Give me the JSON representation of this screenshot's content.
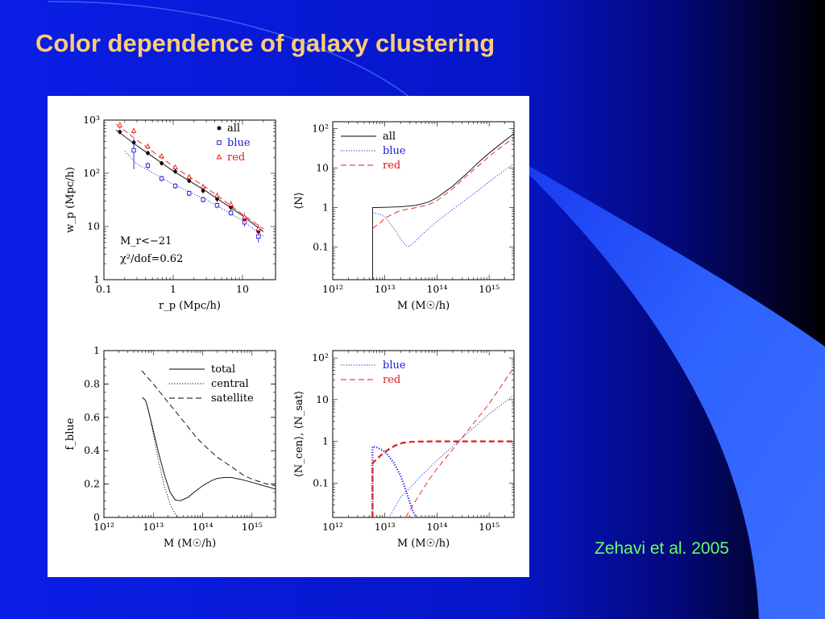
{
  "slide": {
    "title": "Color dependence of galaxy clustering",
    "citation": "Zehavi et al. 2005",
    "colors": {
      "background": "#0a1ee6",
      "background_dark": "#000000",
      "title": "#ffcc77",
      "citation": "#66ff66",
      "swoosh": "#2f63ff",
      "all": "#000000",
      "blue": "#1a1adb",
      "red": "#e21a1a"
    }
  },
  "chart_data": [
    {
      "id": "wp",
      "type": "line",
      "xlabel": "r_p (Mpc/h)",
      "ylabel": "w_p (Mpc/h)",
      "xscale": "log",
      "yscale": "log",
      "xlim": [
        0.1,
        30
      ],
      "ylim": [
        1,
        1000
      ],
      "xticks": [
        {
          "v": 0.1,
          "label": "0.1"
        },
        {
          "v": 1,
          "label": "1"
        },
        {
          "v": 10,
          "label": "10"
        }
      ],
      "yticks": [
        {
          "v": 1,
          "label": "1"
        },
        {
          "v": 10,
          "label": "10"
        },
        {
          "v": 100,
          "label": "10²"
        },
        {
          "v": 1000,
          "label": "10³"
        }
      ],
      "annotations": [
        "M_r<−21",
        "χ²/dof=0.62"
      ],
      "legend_position": "top-right",
      "series": [
        {
          "name": "all",
          "color": "#000000",
          "style": "solid",
          "marker": "filled-circle",
          "x": [
            0.17,
            0.27,
            0.43,
            0.68,
            1.07,
            1.7,
            2.7,
            4.3,
            6.8,
            10.7,
            17
          ],
          "y": [
            600,
            380,
            240,
            155,
            108,
            72,
            47,
            33,
            23,
            14,
            8
          ],
          "err": [
            60,
            60,
            25,
            15,
            10,
            7,
            5,
            4,
            3,
            2,
            2
          ]
        },
        {
          "name": "blue",
          "color": "#1a1adb",
          "style": "dotted",
          "marker": "open-square",
          "x": [
            0.27,
            0.43,
            0.68,
            1.07,
            1.7,
            2.7,
            4.3,
            6.8,
            10.7,
            17
          ],
          "y": [
            270,
            140,
            80,
            58,
            42,
            32,
            25,
            18,
            12,
            6.5
          ],
          "err": [
            150,
            20,
            10,
            7,
            5,
            4,
            3,
            2,
            2,
            1.5
          ]
        },
        {
          "name": "red",
          "color": "#e21a1a",
          "style": "dashed",
          "marker": "open-triangle",
          "x": [
            0.17,
            0.27,
            0.43,
            0.68,
            1.07,
            1.7,
            2.7,
            4.3,
            6.8,
            10.7,
            17
          ],
          "y": [
            800,
            630,
            320,
            210,
            130,
            85,
            56,
            38,
            26,
            15,
            9
          ],
          "err": [
            120,
            80,
            35,
            20,
            12,
            8,
            6,
            5,
            4,
            3,
            2
          ]
        }
      ],
      "model_lines": [
        {
          "name": "all",
          "x": [
            0.15,
            0.3,
            1,
            3,
            10,
            20
          ],
          "y": [
            650,
            330,
            110,
            46,
            16,
            8
          ]
        },
        {
          "name": "blue",
          "x": [
            0.2,
            0.3,
            1,
            3,
            10,
            20
          ],
          "y": [
            260,
            150,
            62,
            32,
            13,
            6.5
          ]
        },
        {
          "name": "red",
          "x": [
            0.15,
            0.3,
            1,
            3,
            10,
            20
          ],
          "y": [
            850,
            420,
            135,
            54,
            17,
            9
          ]
        }
      ]
    },
    {
      "id": "N",
      "type": "line",
      "xlabel": "M (M☉/h)",
      "ylabel": "⟨N⟩",
      "xscale": "log",
      "yscale": "log",
      "xlim": [
        1000000000000.0,
        3000000000000000.0
      ],
      "ylim": [
        0.015,
        150
      ],
      "xticks": [
        {
          "v": 1000000000000.0,
          "label": "10¹²"
        },
        {
          "v": 10000000000000.0,
          "label": "10¹³"
        },
        {
          "v": 100000000000000.0,
          "label": "10¹⁴"
        },
        {
          "v": 1000000000000000.0,
          "label": "10¹⁵"
        }
      ],
      "yticks": [
        {
          "v": 0.1,
          "label": "0.1"
        },
        {
          "v": 1,
          "label": "1"
        },
        {
          "v": 10,
          "label": "10"
        },
        {
          "v": 100,
          "label": "10²"
        }
      ],
      "legend_position": "top-left",
      "series": [
        {
          "name": "all",
          "color": "#000000",
          "style": "solid",
          "x": [
            5800000000000.0,
            5800000000000.0,
            10000000000000.0,
            20000000000000.0,
            40000000000000.0,
            70000000000000.0,
            100000000000000.0,
            200000000000000.0,
            400000000000000.0,
            700000000000000.0,
            1000000000000000.0,
            2000000000000000.0,
            3000000000000000.0
          ],
          "y": [
            0.015,
            1.0,
            1.02,
            1.05,
            1.15,
            1.4,
            1.8,
            3.5,
            8,
            16,
            24,
            50,
            75
          ]
        },
        {
          "name": "blue",
          "color": "#1a1adb",
          "style": "dotted",
          "x": [
            5800000000000.0,
            8000000000000.0,
            10000000000000.0,
            15000000000000.0,
            20000000000000.0,
            25000000000000.0,
            30000000000000.0,
            40000000000000.0,
            60000000000000.0,
            100000000000000.0,
            200000000000000.0,
            500000000000000.0,
            1000000000000000.0,
            2000000000000000.0,
            3000000000000000.0
          ],
          "y": [
            0.75,
            0.68,
            0.58,
            0.3,
            0.16,
            0.11,
            0.105,
            0.15,
            0.25,
            0.45,
            0.9,
            2.2,
            4.5,
            9,
            13
          ]
        },
        {
          "name": "red",
          "color": "#e21a1a",
          "style": "dashed",
          "x": [
            5800000000000.0,
            8000000000000.0,
            10000000000000.0,
            20000000000000.0,
            40000000000000.0,
            70000000000000.0,
            100000000000000.0,
            200000000000000.0,
            400000000000000.0,
            700000000000000.0,
            1000000000000000.0,
            2000000000000000.0,
            3000000000000000.0
          ],
          "y": [
            0.3,
            0.4,
            0.55,
            0.85,
            1.0,
            1.2,
            1.5,
            3,
            7,
            13,
            20,
            40,
            60
          ]
        }
      ]
    },
    {
      "id": "fblue",
      "type": "line",
      "xlabel": "M (M☉/h)",
      "ylabel": "f_blue",
      "xscale": "log",
      "yscale": "linear",
      "xlim": [
        1000000000000.0,
        3000000000000000.0
      ],
      "ylim": [
        0,
        1
      ],
      "xticks": [
        {
          "v": 1000000000000.0,
          "label": "10¹²"
        },
        {
          "v": 10000000000000.0,
          "label": "10¹³"
        },
        {
          "v": 100000000000000.0,
          "label": "10¹⁴"
        },
        {
          "v": 1000000000000000.0,
          "label": "10¹⁵"
        }
      ],
      "yticks": [
        {
          "v": 0,
          "label": "0"
        },
        {
          "v": 0.2,
          "label": "0.2"
        },
        {
          "v": 0.4,
          "label": "0.4"
        },
        {
          "v": 0.6,
          "label": "0.6"
        },
        {
          "v": 0.8,
          "label": "0.8"
        },
        {
          "v": 1,
          "label": "1"
        }
      ],
      "legend_position": "top-right",
      "series": [
        {
          "name": "total",
          "color": "#000000",
          "style": "solid",
          "x": [
            6000000000000.0,
            7000000000000.0,
            8000000000000.0,
            10000000000000.0,
            13000000000000.0,
            17000000000000.0,
            22000000000000.0,
            28000000000000.0,
            35000000000000.0,
            50000000000000.0,
            70000000000000.0,
            100000000000000.0,
            150000000000000.0,
            200000000000000.0,
            300000000000000.0,
            400000000000000.0,
            600000000000000.0,
            1000000000000000.0,
            1500000000000000.0,
            2000000000000000.0,
            3000000000000000.0
          ],
          "y": [
            0.72,
            0.7,
            0.64,
            0.52,
            0.38,
            0.25,
            0.15,
            0.105,
            0.1,
            0.12,
            0.155,
            0.19,
            0.22,
            0.235,
            0.24,
            0.238,
            0.228,
            0.21,
            0.195,
            0.185,
            0.17
          ]
        },
        {
          "name": "central",
          "color": "#000000",
          "style": "dotted",
          "x": [
            6000000000000.0,
            7000000000000.0,
            8000000000000.0,
            10000000000000.0,
            13000000000000.0,
            17000000000000.0,
            22000000000000.0,
            28000000000000.0,
            33000000000000.0
          ],
          "y": [
            0.72,
            0.7,
            0.64,
            0.5,
            0.33,
            0.18,
            0.08,
            0.02,
            0.0
          ]
        },
        {
          "name": "satellite",
          "color": "#000000",
          "style": "dashed",
          "x": [
            5800000000000.0,
            10000000000000.0,
            20000000000000.0,
            40000000000000.0,
            70000000000000.0,
            100000000000000.0,
            200000000000000.0,
            400000000000000.0,
            700000000000000.0,
            1000000000000000.0,
            2000000000000000.0,
            3000000000000000.0
          ],
          "y": [
            0.88,
            0.8,
            0.69,
            0.58,
            0.49,
            0.44,
            0.36,
            0.3,
            0.25,
            0.23,
            0.2,
            0.19
          ]
        }
      ]
    },
    {
      "id": "NcenNsat",
      "type": "line",
      "xlabel": "M (M☉/h)",
      "ylabel": "⟨N_cen⟩, ⟨N_sat⟩",
      "xscale": "log",
      "yscale": "log",
      "xlim": [
        1000000000000.0,
        3000000000000000.0
      ],
      "ylim": [
        0.015,
        150
      ],
      "xticks": [
        {
          "v": 1000000000000.0,
          "label": "10¹²"
        },
        {
          "v": 10000000000000.0,
          "label": "10¹³"
        },
        {
          "v": 100000000000000.0,
          "label": "10¹⁴"
        },
        {
          "v": 1000000000000000.0,
          "label": "10¹⁵"
        }
      ],
      "yticks": [
        {
          "v": 0.1,
          "label": "0.1"
        },
        {
          "v": 1,
          "label": "1"
        },
        {
          "v": 10,
          "label": "10"
        },
        {
          "v": 100,
          "label": "10²"
        }
      ],
      "legend_position": "top-left",
      "series": [
        {
          "name": "blue",
          "color": "#1a1adb",
          "style": "dotted",
          "thick": true,
          "x": [
            5800000000000.0,
            5800000000000.0,
            7000000000000.0,
            9000000000000.0,
            11000000000000.0,
            15000000000000.0,
            20000000000000.0,
            25000000000000.0,
            30000000000000.0,
            35000000000000.0,
            40000000000000.0
          ],
          "y": [
            0.015,
            0.75,
            0.72,
            0.62,
            0.5,
            0.3,
            0.15,
            0.07,
            0.035,
            0.02,
            0.015
          ]
        },
        {
          "name": "red",
          "color": "#e21a1a",
          "style": "dashed",
          "thick": true,
          "x": [
            5800000000000.0,
            5800000000000.0,
            7000000000000.0,
            9000000000000.0,
            12000000000000.0,
            16000000000000.0,
            22000000000000.0,
            30000000000000.0,
            50000000000000.0,
            100000000000000.0,
            3000000000000000.0
          ],
          "y": [
            0.015,
            0.3,
            0.38,
            0.5,
            0.65,
            0.8,
            0.92,
            0.97,
            0.99,
            1.0,
            1.0
          ]
        },
        {
          "name": "blue-satellite",
          "color": "#1a1adb",
          "style": "dotted",
          "thick": false,
          "legend": false,
          "x": [
            12000000000000.0,
            20000000000000.0,
            50000000000000.0,
            100000000000000.0,
            300000000000000.0,
            1000000000000000.0,
            3000000000000000.0
          ],
          "y": [
            0.015,
            0.045,
            0.15,
            0.35,
            1.2,
            4.5,
            13
          ]
        },
        {
          "name": "red-satellite",
          "color": "#e21a1a",
          "style": "dashed",
          "thick": false,
          "legend": false,
          "x": [
            25000000000000.0,
            40000000000000.0,
            70000000000000.0,
            100000000000000.0,
            300000000000000.0,
            1000000000000000.0,
            3000000000000000.0
          ],
          "y": [
            0.015,
            0.04,
            0.12,
            0.22,
            1.2,
            8,
            60
          ]
        }
      ]
    }
  ]
}
